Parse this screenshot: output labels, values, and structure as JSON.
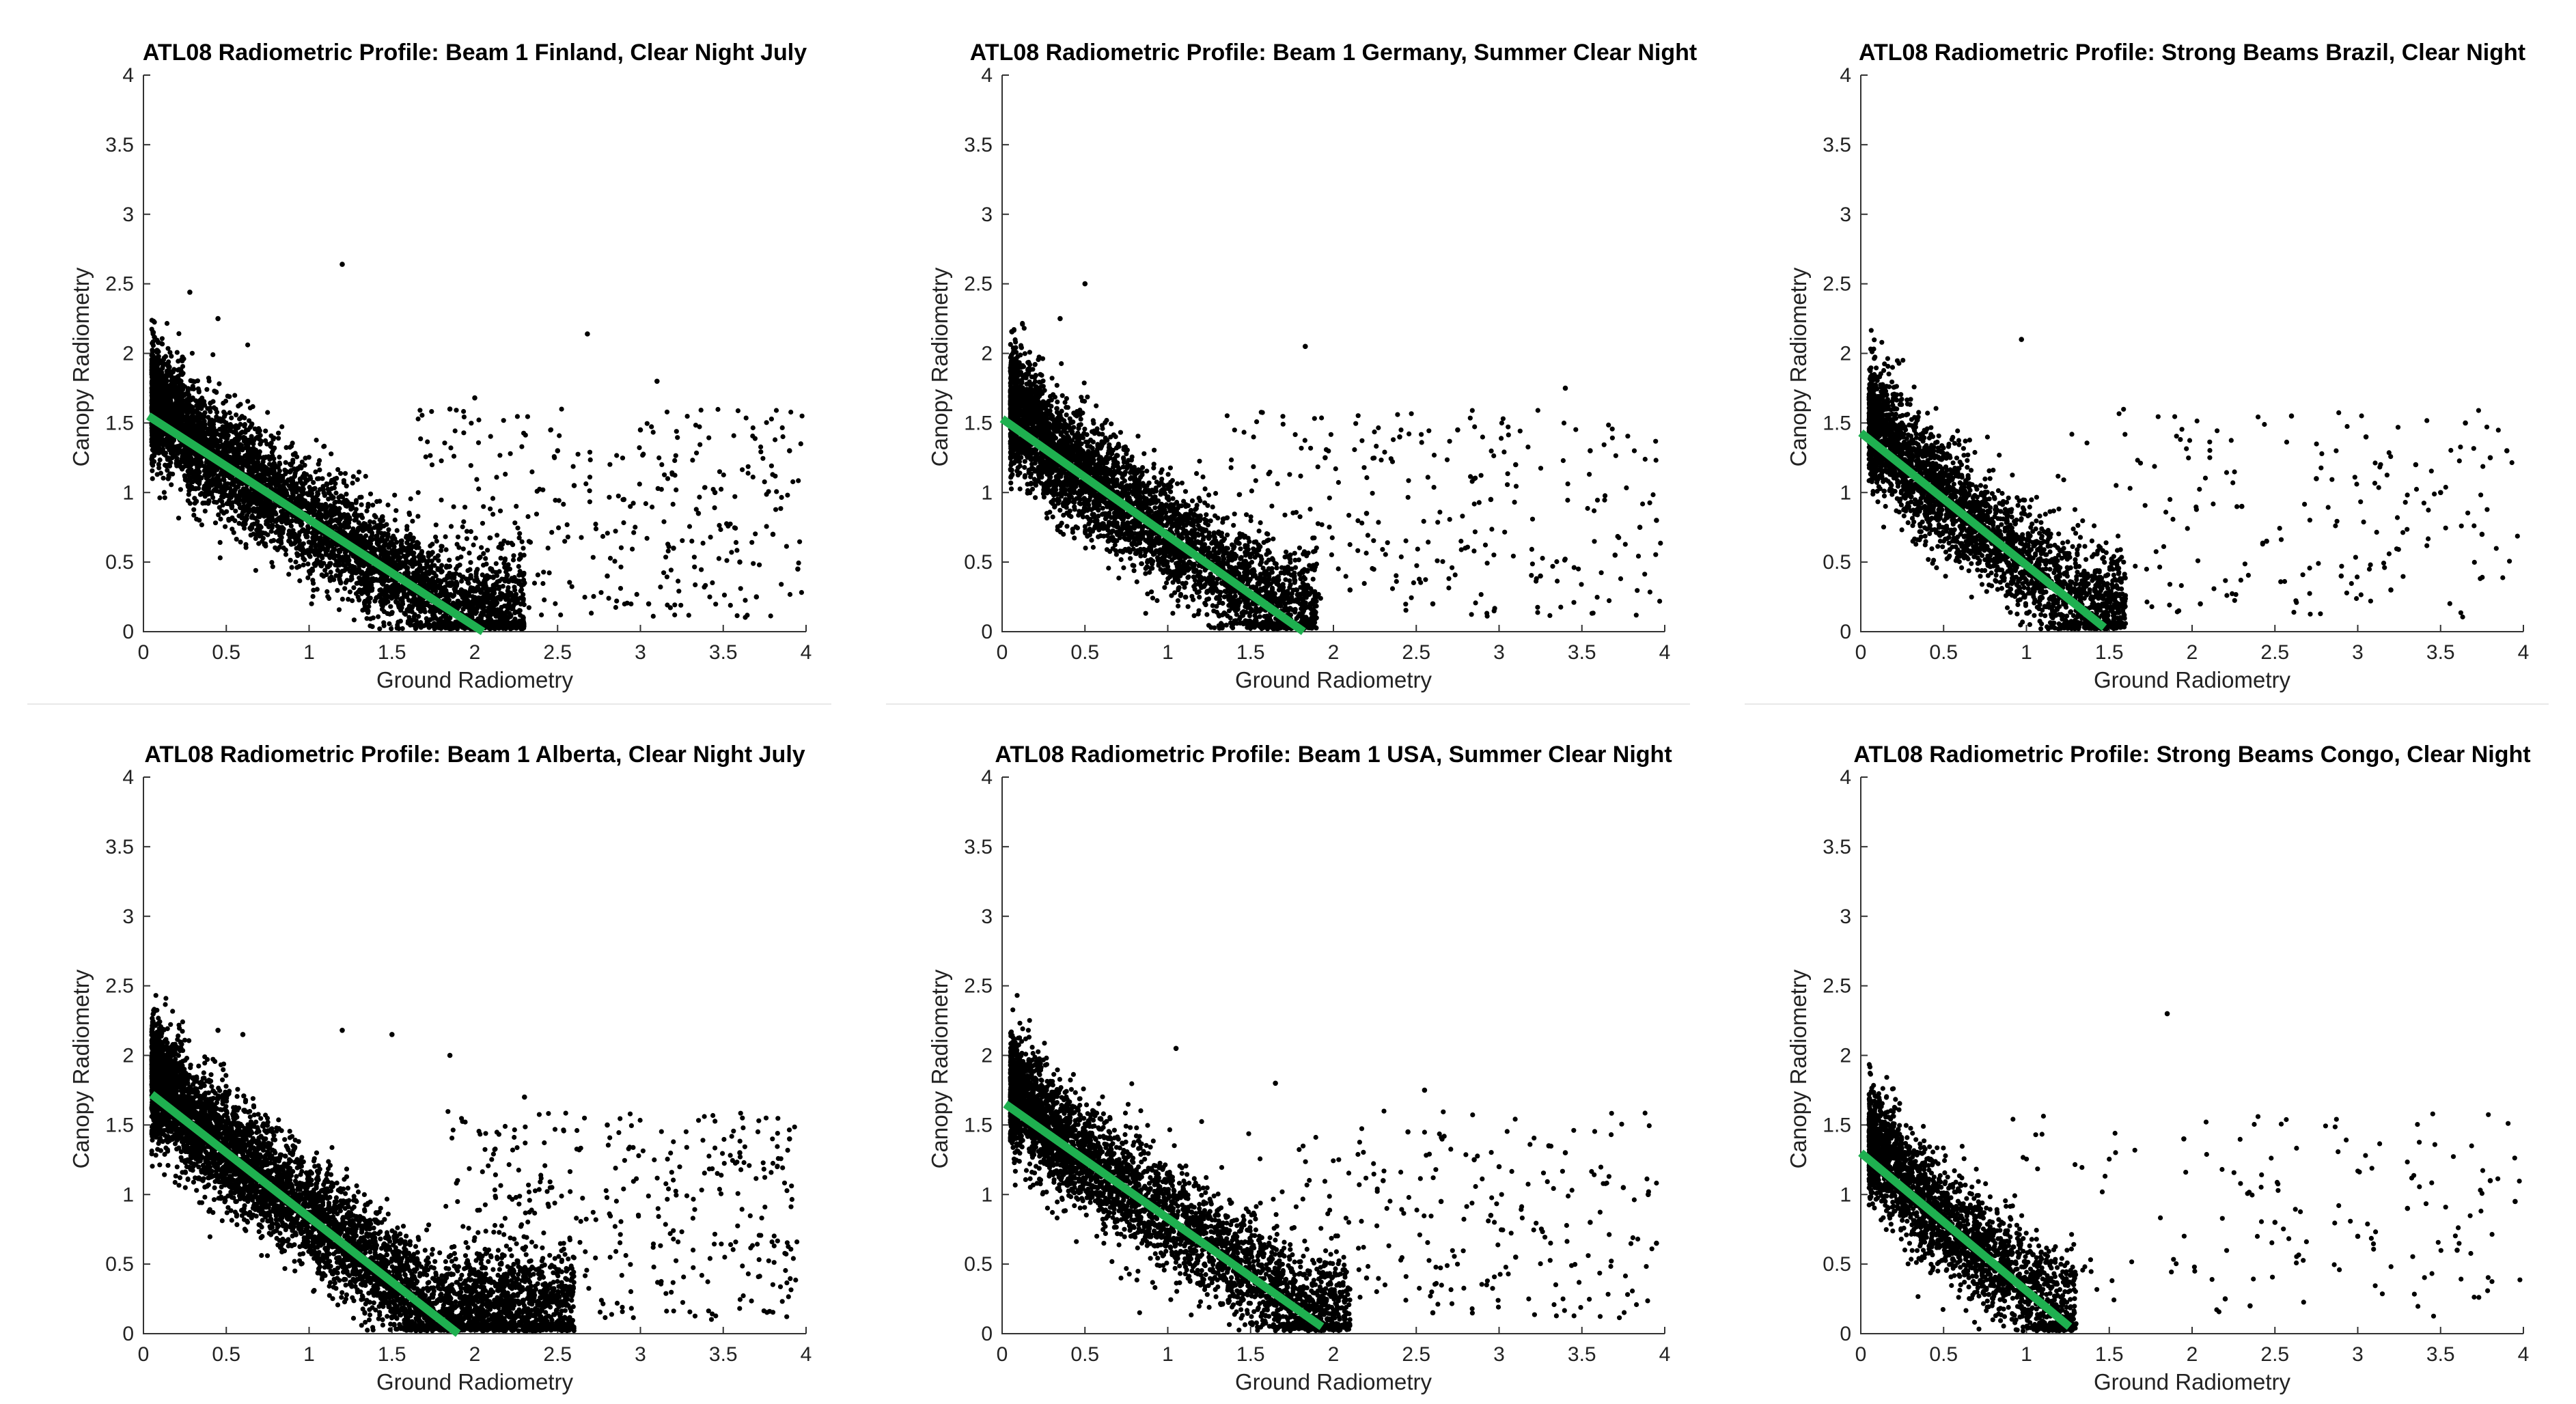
{
  "chart_data": [
    {
      "type": "scatter",
      "title": "ATL08 Radiometric Profile: Beam 1 Finland, Clear Night July",
      "xlabel": "Ground Radiometry",
      "ylabel": "Canopy Radiometry",
      "xlim": [
        0,
        4
      ],
      "ylim": [
        0,
        4
      ],
      "xticks": [
        "0",
        "0.5",
        "1",
        "1.5",
        "2",
        "2.5",
        "3",
        "3.5",
        "4"
      ],
      "yticks": [
        "0",
        "0.5",
        "1",
        "1.5",
        "2",
        "2.5",
        "3",
        "3.5",
        "4"
      ],
      "fit_line": {
        "color": "#1fb050",
        "points": [
          [
            0.03,
            1.55
          ],
          [
            2.05,
            0.0
          ]
        ]
      },
      "cluster": {
        "x_range": [
          0.05,
          2.3
        ],
        "density": "very high",
        "count": 5200
      },
      "outliers": [
        [
          0.28,
          2.44
        ],
        [
          0.45,
          2.25
        ],
        [
          1.2,
          2.64
        ],
        [
          2.68,
          2.14
        ],
        [
          3.1,
          1.8
        ],
        [
          2.0,
          1.68
        ],
        [
          1.85,
          1.6
        ],
        [
          3.9,
          1.3
        ],
        [
          3.35,
          0.85
        ],
        [
          3.6,
          0.5
        ],
        [
          3.8,
          0.7
        ],
        [
          2.5,
          1.3
        ],
        [
          2.9,
          0.95
        ],
        [
          3.0,
          1.45
        ],
        [
          3.95,
          0.45
        ],
        [
          2.3,
          0.35
        ],
        [
          3.2,
          0.6
        ],
        [
          2.8,
          0.4
        ],
        [
          3.45,
          1.0
        ],
        [
          3.7,
          0.25
        ],
        [
          2.6,
          1.05
        ],
        [
          3.05,
          0.2
        ]
      ]
    },
    {
      "type": "scatter",
      "title": "ATL08 Radiometric Profile: Beam 1 Germany, Summer Clear Night",
      "xlabel": "Ground Radiometry",
      "ylabel": "Canopy Radiometry",
      "xlim": [
        0,
        4
      ],
      "ylim": [
        0,
        4
      ],
      "xticks": [
        "0",
        "0.5",
        "1",
        "1.5",
        "2",
        "2.5",
        "3",
        "3.5",
        "4"
      ],
      "yticks": [
        "0",
        "0.5",
        "1",
        "1.5",
        "2",
        "2.5",
        "3",
        "3.5",
        "4"
      ],
      "fit_line": {
        "color": "#1fb050",
        "points": [
          [
            0.0,
            1.53
          ],
          [
            1.82,
            0.0
          ]
        ]
      },
      "cluster": {
        "x_range": [
          0.05,
          1.9
        ],
        "density": "very high",
        "count": 4200
      },
      "outliers": [
        [
          0.35,
          2.25
        ],
        [
          0.5,
          2.5
        ],
        [
          1.83,
          2.05
        ],
        [
          3.4,
          1.75
        ],
        [
          2.4,
          1.4
        ],
        [
          2.75,
          1.45
        ],
        [
          3.1,
          1.2
        ],
        [
          3.95,
          0.8
        ],
        [
          2.2,
          0.85
        ],
        [
          2.95,
          0.95
        ],
        [
          3.25,
          0.4
        ],
        [
          2.6,
          0.2
        ],
        [
          3.7,
          0.55
        ],
        [
          1.95,
          1.25
        ],
        [
          2.1,
          0.3
        ],
        [
          3.55,
          1.3
        ],
        [
          2.85,
          1.1
        ],
        [
          3.85,
          0.75
        ]
      ]
    },
    {
      "type": "scatter",
      "title": "ATL08 Radiometric Profile: Strong Beams Brazil, Clear Night",
      "xlabel": "Ground Radiometry",
      "ylabel": "Canopy Radiometry",
      "xlim": [
        0,
        4
      ],
      "ylim": [
        0,
        4
      ],
      "xticks": [
        "0",
        "0.5",
        "1",
        "1.5",
        "2",
        "2.5",
        "3",
        "3.5",
        "4"
      ],
      "yticks": [
        "0",
        "0.5",
        "1",
        "1.5",
        "2",
        "2.5",
        "3",
        "3.5",
        "4"
      ],
      "fit_line": {
        "color": "#1fb050",
        "points": [
          [
            0.0,
            1.43
          ],
          [
            1.47,
            0.03
          ]
        ]
      },
      "cluster": {
        "x_range": [
          0.05,
          1.6
        ],
        "density": "high",
        "count": 3000
      },
      "outliers": [
        [
          0.97,
          2.1
        ],
        [
          3.65,
          1.5
        ],
        [
          3.9,
          1.3
        ],
        [
          3.8,
          1.25
        ],
        [
          3.75,
          0.7
        ],
        [
          3.5,
          1.0
        ],
        [
          2.6,
          1.55
        ],
        [
          3.2,
          0.3
        ],
        [
          2.9,
          0.4
        ],
        [
          2.3,
          0.9
        ],
        [
          2.05,
          0.2
        ],
        [
          3.35,
          1.2
        ],
        [
          2.75,
          1.1
        ],
        [
          2.45,
          0.65
        ],
        [
          3.05,
          1.4
        ]
      ]
    },
    {
      "type": "scatter",
      "title": "ATL08 Radiometric Profile: Beam 1 Alberta, Clear Night July",
      "xlabel": "Ground Radiometry",
      "ylabel": "Canopy Radiometry",
      "xlim": [
        0,
        4
      ],
      "ylim": [
        0,
        4
      ],
      "xticks": [
        "0",
        "0.5",
        "1",
        "1.5",
        "2",
        "2.5",
        "3",
        "3.5",
        "4"
      ],
      "yticks": [
        "0",
        "0.5",
        "1",
        "1.5",
        "2",
        "2.5",
        "3",
        "3.5",
        "4"
      ],
      "fit_line": {
        "color": "#1fb050",
        "points": [
          [
            0.05,
            1.72
          ],
          [
            1.9,
            0.0
          ]
        ]
      },
      "cluster": {
        "x_range": [
          0.05,
          2.6
        ],
        "density": "very high",
        "count": 6000
      },
      "outliers": [
        [
          0.45,
          2.18
        ],
        [
          1.2,
          2.18
        ],
        [
          1.5,
          2.15
        ],
        [
          1.85,
          2.0
        ],
        [
          0.6,
          2.15
        ],
        [
          2.3,
          1.7
        ],
        [
          3.9,
          1.4
        ],
        [
          3.6,
          1.3
        ],
        [
          2.8,
          1.5
        ]
      ]
    },
    {
      "type": "scatter",
      "title": "ATL08 Radiometric Profile: Beam 1 USA, Summer Clear Night",
      "xlabel": "Ground Radiometry",
      "ylabel": "Canopy Radiometry",
      "xlim": [
        0,
        4
      ],
      "ylim": [
        0,
        4
      ],
      "xticks": [
        "0",
        "0.5",
        "1",
        "1.5",
        "2",
        "2.5",
        "3",
        "3.5",
        "4"
      ],
      "yticks": [
        "0",
        "0.5",
        "1",
        "1.5",
        "2",
        "2.5",
        "3",
        "3.5",
        "4"
      ],
      "fit_line": {
        "color": "#1fb050",
        "points": [
          [
            0.02,
            1.65
          ],
          [
            1.93,
            0.05
          ]
        ]
      },
      "cluster": {
        "x_range": [
          0.05,
          2.1
        ],
        "density": "high",
        "count": 3800
      },
      "outliers": [
        [
          1.05,
          2.05
        ],
        [
          1.65,
          1.8
        ],
        [
          2.55,
          1.75
        ],
        [
          2.45,
          1.45
        ],
        [
          3.3,
          1.35
        ],
        [
          3.4,
          1.3
        ],
        [
          3.75,
          1.05
        ],
        [
          3.9,
          1.0
        ],
        [
          3.95,
          0.65
        ],
        [
          2.85,
          1.25
        ],
        [
          3.0,
          1.2
        ],
        [
          2.3,
          1.1
        ],
        [
          2.65,
          0.95
        ],
        [
          3.1,
          0.55
        ],
        [
          2.2,
          0.4
        ],
        [
          2.6,
          0.15
        ],
        [
          3.55,
          0.8
        ],
        [
          2.95,
          0.85
        ]
      ]
    },
    {
      "type": "scatter",
      "title": "ATL08 Radiometric Profile: Strong Beams Congo, Clear Night",
      "xlabel": "Ground Radiometry",
      "ylabel": "Canopy Radiometry",
      "xlim": [
        0,
        4
      ],
      "ylim": [
        0,
        4
      ],
      "xticks": [
        "0",
        "0.5",
        "1",
        "1.5",
        "2",
        "2.5",
        "3",
        "3.5",
        "4"
      ],
      "yticks": [
        "0",
        "0.5",
        "1",
        "1.5",
        "2",
        "2.5",
        "3",
        "3.5",
        "4"
      ],
      "fit_line": {
        "color": "#1fb050",
        "points": [
          [
            0.0,
            1.3
          ],
          [
            1.26,
            0.05
          ]
        ]
      },
      "cluster": {
        "x_range": [
          0.05,
          1.3
        ],
        "density": "high",
        "count": 2400
      },
      "outliers": [
        [
          1.85,
          2.3
        ],
        [
          3.8,
          1.1
        ],
        [
          3.95,
          0.95
        ],
        [
          3.6,
          0.6
        ],
        [
          3.0,
          0.7
        ],
        [
          2.2,
          0.25
        ],
        [
          2.35,
          0.2
        ],
        [
          1.95,
          1.4
        ],
        [
          2.5,
          0.8
        ],
        [
          3.3,
          0.9
        ]
      ]
    }
  ]
}
